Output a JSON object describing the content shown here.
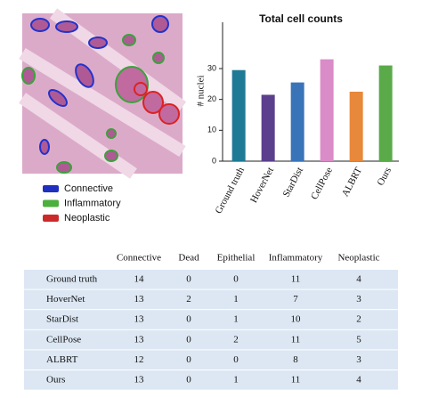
{
  "image_legend": [
    {
      "label": "Connective",
      "color": "#1f2fc0"
    },
    {
      "label": "Inflammatory",
      "color": "#4caf3e"
    },
    {
      "label": "Neoplastic",
      "color": "#cc2a2a"
    }
  ],
  "chart_data": {
    "type": "bar",
    "title": "Total cell counts",
    "y_label": "# nuclei",
    "categories": [
      "Ground truth",
      "HoverNet",
      "StarDist",
      "CellPose",
      "ALBRT",
      "Ours"
    ],
    "values": [
      29.5,
      21.5,
      25.5,
      33,
      22.5,
      31
    ],
    "colors": [
      "#1f7a96",
      "#5b3f8c",
      "#3a74b8",
      "#d98cc8",
      "#e8883a",
      "#5aaa4a"
    ],
    "ylim": [
      0,
      45
    ],
    "yticks": [
      0,
      10,
      20,
      30
    ]
  },
  "table": {
    "header": [
      "Connective",
      "Dead",
      "Epithelial",
      "Inflammatory",
      "Neoplastic"
    ],
    "rows": [
      [
        "Ground truth",
        14,
        0,
        0,
        11,
        4
      ],
      [
        "HoverNet",
        13,
        2,
        1,
        7,
        3
      ],
      [
        "StarDist",
        13,
        0,
        1,
        10,
        2
      ],
      [
        "CellPose",
        13,
        0,
        2,
        11,
        5
      ],
      [
        "ALBRT",
        12,
        0,
        0,
        8,
        3
      ],
      [
        "Ours",
        13,
        0,
        1,
        11,
        4
      ]
    ]
  }
}
